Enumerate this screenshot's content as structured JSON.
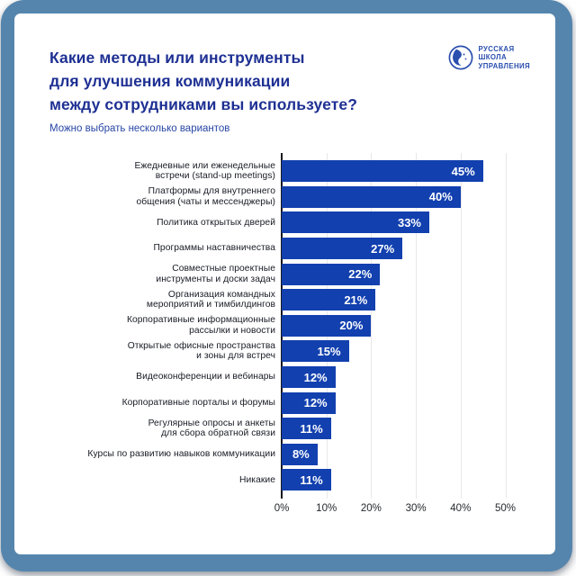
{
  "frame": {
    "border_color": "#5585AD",
    "card_bg": "#FFFFFF"
  },
  "header": {
    "title_lines": [
      "Какие методы или инструменты",
      "для улучшения коммуникации",
      "между сотрудниками вы используете?"
    ],
    "subtitle": "Можно выбрать несколько вариантов",
    "title_color": "#1E3093"
  },
  "logo": {
    "lines": [
      "РУССКАЯ",
      "ШКОЛА",
      "УПРАВЛЕНИЯ"
    ],
    "color": "#2B4FAE"
  },
  "chart_data": {
    "type": "bar",
    "orientation": "horizontal",
    "title": "Какие методы или инструменты для улучшения коммуникации между сотрудниками вы используете?",
    "subtitle": "Можно выбрать несколько вариантов",
    "categories": [
      [
        "Ежедневные или еженедельные",
        "встречи (stand-up meetings)"
      ],
      [
        "Платформы для внутреннего",
        "общения (чаты и мессенджеры)"
      ],
      [
        "Политика открытых дверей"
      ],
      [
        "Программы наставничества"
      ],
      [
        "Совместные проектные",
        "инструменты и доски задач"
      ],
      [
        "Организация командных",
        "мероприятий и тимбилдингов"
      ],
      [
        "Корпоративные информационные",
        "рассылки и новости"
      ],
      [
        "Открытые офисные пространства",
        "и зоны для встреч"
      ],
      [
        "Видеоконференции и вебинары"
      ],
      [
        "Корпоративные порталы и форумы"
      ],
      [
        "Регулярные опросы и анкеты",
        "для сбора обратной связи"
      ],
      [
        "Курсы по развитию навыков коммуникации"
      ],
      [
        "Никакие"
      ]
    ],
    "values": [
      45,
      40,
      33,
      27,
      22,
      21,
      20,
      15,
      12,
      12,
      11,
      8,
      11
    ],
    "value_labels": [
      "45%",
      "40%",
      "33%",
      "27%",
      "22%",
      "21%",
      "20%",
      "15%",
      "12%",
      "12%",
      "11%",
      "8%",
      "11%"
    ],
    "x_tick_values": [
      0,
      10,
      20,
      30,
      40,
      50
    ],
    "x_ticks": [
      "0%",
      "10%",
      "20%",
      "30%",
      "40%",
      "50%"
    ],
    "xlim": [
      0,
      50
    ],
    "grid": true,
    "legend": false,
    "bar_color": "#1240AF",
    "value_label_color": "#FFFFFF"
  }
}
